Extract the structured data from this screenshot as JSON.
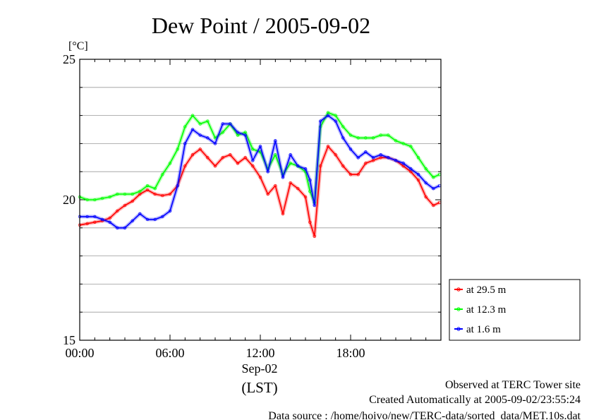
{
  "chart_data": {
    "type": "line",
    "title": "Dew Point / 2005-09-02",
    "yunit": "[°C]",
    "ylim": [
      15,
      25
    ],
    "yticks": [
      15,
      20,
      25
    ],
    "ygrid": [
      16,
      17,
      18,
      19,
      21,
      22,
      23,
      24
    ],
    "xlim": [
      0,
      24
    ],
    "xticks": [
      {
        "hour": 0,
        "label": "00:00"
      },
      {
        "hour": 6,
        "label": "06:00"
      },
      {
        "hour": 12,
        "label": "12:00"
      },
      {
        "hour": 18,
        "label": "18:00"
      }
    ],
    "xdate": "Sep-02",
    "xlabel": "(LST)",
    "legend_position": "right",
    "x": [
      0,
      0.5,
      1,
      1.5,
      2,
      2.5,
      3,
      3.5,
      4,
      4.5,
      5,
      5.5,
      6,
      6.5,
      7,
      7.5,
      8,
      8.5,
      9,
      9.5,
      10,
      10.5,
      11,
      11.5,
      12,
      12.5,
      13,
      13.5,
      14,
      14.5,
      15,
      15.3,
      15.6,
      16,
      16.5,
      17,
      17.5,
      18,
      18.5,
      19,
      19.5,
      20,
      20.5,
      21,
      21.5,
      22,
      22.5,
      23,
      23.5,
      23.9
    ],
    "series": [
      {
        "name": "at 29.5 m",
        "color": "#ff0000",
        "values": [
          19.1,
          19.15,
          19.2,
          19.25,
          19.35,
          19.6,
          19.8,
          19.95,
          20.2,
          20.35,
          20.2,
          20.15,
          20.2,
          20.5,
          21.2,
          21.6,
          21.8,
          21.5,
          21.2,
          21.5,
          21.6,
          21.3,
          21.5,
          21.2,
          20.8,
          20.2,
          20.5,
          19.5,
          20.6,
          20.4,
          20.1,
          19.2,
          18.7,
          21.2,
          21.9,
          21.6,
          21.2,
          20.9,
          20.9,
          21.3,
          21.4,
          21.5,
          21.5,
          21.4,
          21.2,
          21.0,
          20.7,
          20.1,
          19.8,
          19.9
        ]
      },
      {
        "name": "at 12.3 m",
        "color": "#00ff00",
        "values": [
          20.1,
          20.0,
          20.0,
          20.05,
          20.1,
          20.2,
          20.2,
          20.2,
          20.3,
          20.5,
          20.4,
          20.9,
          21.3,
          21.8,
          22.6,
          23.0,
          22.7,
          22.8,
          22.2,
          22.4,
          22.7,
          22.3,
          22.4,
          21.8,
          21.7,
          21.1,
          21.6,
          20.9,
          21.3,
          21.2,
          21.0,
          20.3,
          19.9,
          22.6,
          23.1,
          23.0,
          22.6,
          22.3,
          22.2,
          22.2,
          22.2,
          22.3,
          22.3,
          22.1,
          22.0,
          21.9,
          21.5,
          21.1,
          20.8,
          20.9
        ]
      },
      {
        "name": "at 1.6 m",
        "color": "#0000ff",
        "values": [
          19.4,
          19.4,
          19.4,
          19.3,
          19.2,
          19.0,
          19.0,
          19.25,
          19.5,
          19.3,
          19.3,
          19.4,
          19.6,
          20.5,
          22.0,
          22.5,
          22.3,
          22.2,
          22.0,
          22.7,
          22.7,
          22.4,
          22.3,
          21.4,
          21.9,
          21.0,
          22.1,
          20.8,
          21.6,
          21.2,
          21.1,
          20.7,
          19.8,
          22.8,
          23.0,
          22.8,
          22.2,
          21.8,
          21.5,
          21.7,
          21.5,
          21.6,
          21.5,
          21.4,
          21.3,
          21.1,
          20.9,
          20.6,
          20.4,
          20.5
        ]
      }
    ]
  },
  "footer": {
    "line1": "Observed at TERC Tower site",
    "line2": "Created Automatically at 2005-09-02/23:55:24",
    "line3": "Data source : /home/hoivo/new/TERC-data/sorted_data/MET.10s.dat"
  }
}
